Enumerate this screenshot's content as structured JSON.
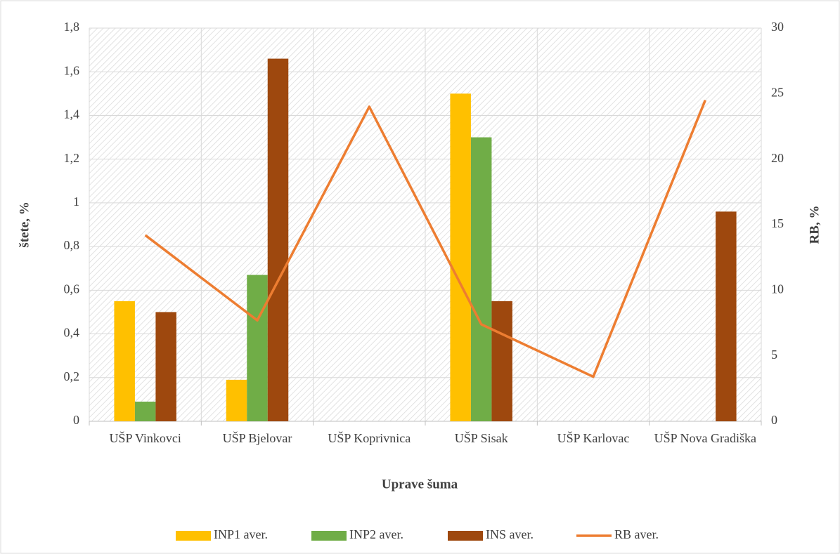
{
  "chart_data": {
    "type": "bar",
    "xlabel": "Uprave šuma",
    "ylabel": "štete, %",
    "y2label": "RB, %",
    "categories": [
      "UŠP Vinkovci",
      "UŠP Bjelovar",
      "UŠP Koprivnica",
      "UŠP Sisak",
      "UŠP Karlovac",
      "UŠP Nova Gradiška"
    ],
    "series": [
      {
        "name": "INP1 aver.",
        "color": "#ffc000",
        "type": "bar",
        "values": [
          0.55,
          0.19,
          null,
          1.5,
          null,
          null
        ]
      },
      {
        "name": "INP2 aver.",
        "color": "#70ad47",
        "type": "bar",
        "values": [
          0.09,
          0.67,
          null,
          1.3,
          null,
          null
        ]
      },
      {
        "name": "INS aver.",
        "color": "#9e480e",
        "type": "bar",
        "values": [
          0.5,
          1.66,
          null,
          0.55,
          null,
          0.96
        ]
      },
      {
        "name": "RB aver.",
        "color": "#ed7d31",
        "type": "line",
        "axis": "y2",
        "values": [
          14.2,
          7.7,
          24.0,
          7.4,
          3.4,
          24.5
        ]
      }
    ],
    "ylim": [
      0,
      1.8
    ],
    "yticks": [
      0,
      {
        "value": 0.2,
        "label": "0,2"
      },
      {
        "value": 0.4,
        "label": "0,4"
      },
      {
        "value": 0.6,
        "label": "0,6"
      },
      {
        "value": 0.8,
        "label": "0,8"
      },
      1,
      {
        "value": 1.2,
        "label": "1,2"
      },
      {
        "value": 1.4,
        "label": "1,4"
      },
      {
        "value": 1.6,
        "label": "1,6"
      },
      {
        "value": 1.8,
        "label": "1,8"
      }
    ],
    "y2lim": [
      0,
      30
    ],
    "y2ticks": [
      0,
      5,
      10,
      15,
      20,
      25,
      30
    ],
    "grid": true,
    "legend": "bottom"
  }
}
